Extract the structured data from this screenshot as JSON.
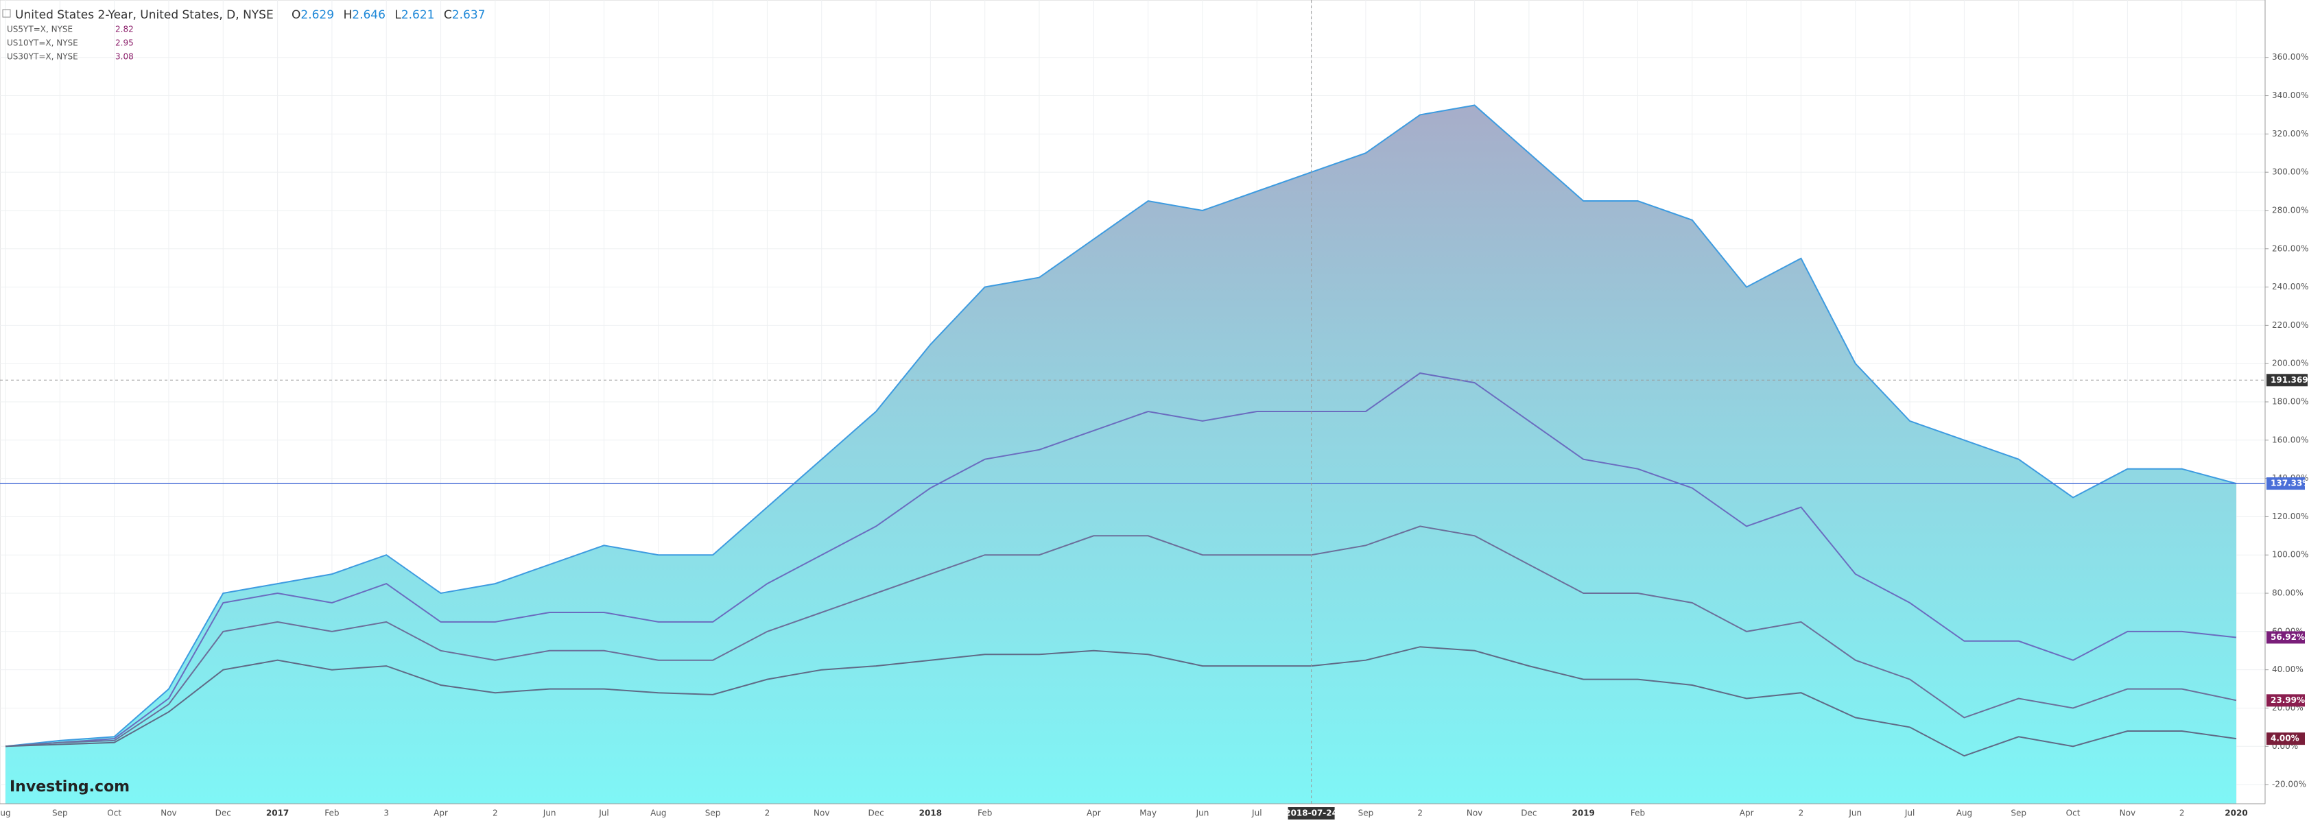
{
  "chart_data": {
    "type": "area",
    "legend": {
      "main": {
        "name": "United States 2-Year, United States, D, NYSE",
        "o_key": "O",
        "o": "2.629",
        "h_key": "H",
        "h": "2.646",
        "l_key": "L",
        "l": "2.621",
        "c_key": "C",
        "c": "2.637"
      },
      "others": [
        {
          "name": "US5YT=X, NYSE",
          "value": "2.82"
        },
        {
          "name": "US10YT=X, NYSE",
          "value": "2.95"
        },
        {
          "name": "US30YT=X, NYSE",
          "value": "3.08"
        }
      ]
    },
    "logo": "Investing.com",
    "categories": [
      "ug",
      "Sep",
      "Oct",
      "Nov",
      "Dec",
      "2017",
      "Feb",
      "3",
      "Apr",
      "2",
      "Jun",
      "Jul",
      "Aug",
      "Sep",
      "2",
      "Nov",
      "Dec",
      "2018",
      "Feb",
      null,
      "Apr",
      "May",
      "Jun",
      "Jul",
      null,
      "Sep",
      "2",
      "Nov",
      "Dec",
      "2019",
      "Feb",
      null,
      "Apr",
      "2",
      "Jun",
      "Jul",
      "Aug",
      "Sep",
      "Oct",
      "Nov",
      "2",
      "2020"
    ],
    "series": [
      {
        "name": "United States 2-Year",
        "color": "#3d9be0",
        "last_label": "137.33%",
        "label_color": "#4a6fd8",
        "values": [
          0,
          3,
          5,
          30,
          80,
          85,
          90,
          100,
          80,
          85,
          95,
          105,
          100,
          100,
          125,
          150,
          175,
          210,
          240,
          245,
          265,
          285,
          280,
          290,
          300,
          310,
          330,
          335,
          310,
          285,
          285,
          275,
          240,
          255,
          200,
          170,
          160,
          150,
          130,
          145,
          145,
          137.33
        ]
      },
      {
        "name": "US5YT=X",
        "color": "#6a6cbf",
        "last_label": "56.92%",
        "label_color": "#7a1e7a",
        "values": [
          0,
          2,
          4,
          25,
          75,
          80,
          75,
          85,
          65,
          65,
          70,
          70,
          65,
          65,
          85,
          100,
          115,
          135,
          150,
          155,
          165,
          175,
          170,
          175,
          175,
          175,
          195,
          190,
          170,
          150,
          145,
          135,
          115,
          125,
          90,
          75,
          55,
          55,
          45,
          60,
          60,
          56.92
        ]
      },
      {
        "name": "US10YT=X",
        "color": "#6b6f9a",
        "last_label": "23.99%",
        "label_color": "#8b1e4f",
        "values": [
          0,
          2,
          3,
          22,
          60,
          65,
          60,
          65,
          50,
          45,
          50,
          50,
          45,
          45,
          60,
          70,
          80,
          90,
          100,
          100,
          110,
          110,
          100,
          100,
          100,
          105,
          115,
          110,
          95,
          80,
          80,
          75,
          60,
          65,
          45,
          35,
          15,
          25,
          20,
          30,
          30,
          23.99
        ]
      },
      {
        "name": "US30YT=X",
        "color": "#5f6a86",
        "last_label": "4.00%",
        "label_color": "#7a1e3a",
        "values": [
          0,
          1,
          2,
          18,
          40,
          45,
          40,
          42,
          32,
          28,
          30,
          30,
          28,
          27,
          35,
          40,
          42,
          45,
          48,
          48,
          50,
          48,
          42,
          42,
          42,
          45,
          52,
          50,
          42,
          35,
          35,
          32,
          25,
          28,
          15,
          10,
          -5,
          5,
          0,
          8,
          8,
          4.0
        ]
      }
    ],
    "crosshair": {
      "category_index": 24,
      "x_label": "2018-07-24",
      "y": 191.369,
      "y_label": "191.369"
    },
    "ylim": [
      -30,
      390
    ],
    "yticks": [
      {
        "value": -20,
        "label": "-20.00%"
      },
      {
        "value": 0,
        "label": "0.00%"
      },
      {
        "value": 20,
        "label": "20.00%"
      },
      {
        "value": 40,
        "label": "40.00%"
      },
      {
        "value": 60,
        "label": "60.00%"
      },
      {
        "value": 80,
        "label": "80.00%"
      },
      {
        "value": 100,
        "label": "100.00%"
      },
      {
        "value": 120,
        "label": "120.00%"
      },
      {
        "value": 140,
        "label": "140.00%"
      },
      {
        "value": 160,
        "label": "160.00%"
      },
      {
        "value": 180,
        "label": "180.00%"
      },
      {
        "value": 200,
        "label": "200.00%"
      },
      {
        "value": 220,
        "label": "220.00%"
      },
      {
        "value": 240,
        "label": "240.00%"
      },
      {
        "value": 260,
        "label": "260.00%"
      },
      {
        "value": 280,
        "label": "280.00%"
      },
      {
        "value": 300,
        "label": "300.00%"
      },
      {
        "value": 320,
        "label": "320.00%"
      },
      {
        "value": 340,
        "label": "340.00%"
      },
      {
        "value": 360,
        "label": "360.00%"
      }
    ],
    "grid": true
  }
}
